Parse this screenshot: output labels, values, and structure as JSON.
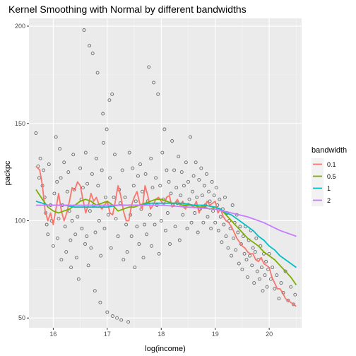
{
  "chart_data": {
    "type": "scatter",
    "title": "Kernel Smoothing with Normal by different bandwidths",
    "xlabel": "log(income)",
    "ylabel": "packpc",
    "xlim": [
      15.55,
      20.6
    ],
    "ylim": [
      45,
      204
    ],
    "x_ticks": [
      16,
      17,
      18,
      19,
      20
    ],
    "y_ticks": [
      50,
      100,
      150,
      200
    ],
    "grid": true,
    "panel_background": "#ebebeb",
    "point_color": "#000000",
    "legend": {
      "title": "bandwidth",
      "placement": "right"
    },
    "points": [
      [
        15.68,
        145
      ],
      [
        15.72,
        128
      ],
      [
        15.74,
        122
      ],
      [
        15.76,
        132
      ],
      [
        15.8,
        118
      ],
      [
        15.82,
        126
      ],
      [
        15.84,
        112
      ],
      [
        15.86,
        104
      ],
      [
        15.88,
        98
      ],
      [
        15.9,
        93
      ],
      [
        15.92,
        129
      ],
      [
        15.95,
        108
      ],
      [
        15.97,
        100
      ],
      [
        16.0,
        87
      ],
      [
        16.02,
        114
      ],
      [
        16.05,
        143
      ],
      [
        16.07,
        120
      ],
      [
        16.08,
        91
      ],
      [
        16.1,
        101
      ],
      [
        16.12,
        137
      ],
      [
        16.14,
        122
      ],
      [
        16.15,
        80
      ],
      [
        16.17,
        108
      ],
      [
        16.2,
        130
      ],
      [
        16.22,
        97
      ],
      [
        16.24,
        84
      ],
      [
        16.26,
        115
      ],
      [
        16.28,
        125
      ],
      [
        16.3,
        105
      ],
      [
        16.32,
        90
      ],
      [
        16.33,
        76
      ],
      [
        16.35,
        100
      ],
      [
        16.37,
        134
      ],
      [
        16.39,
        116
      ],
      [
        16.41,
        93
      ],
      [
        16.43,
        81
      ],
      [
        16.45,
        102
      ],
      [
        16.47,
        70
      ],
      [
        16.5,
        127
      ],
      [
        16.52,
        111
      ],
      [
        16.53,
        96
      ],
      [
        16.55,
        117
      ],
      [
        16.57,
        198
      ],
      [
        16.59,
        88
      ],
      [
        16.6,
        135
      ],
      [
        16.62,
        92
      ],
      [
        16.63,
        119
      ],
      [
        16.65,
        77
      ],
      [
        16.67,
        190
      ],
      [
        16.68,
        105
      ],
      [
        16.7,
        86
      ],
      [
        16.72,
        124
      ],
      [
        16.73,
        186
      ],
      [
        16.75,
        108
      ],
      [
        16.77,
        64
      ],
      [
        16.78,
        94
      ],
      [
        16.8,
        132
      ],
      [
        16.82,
        176
      ],
      [
        16.83,
        118
      ],
      [
        16.85,
        100
      ],
      [
        16.87,
        58
      ],
      [
        16.88,
        82
      ],
      [
        16.9,
        126
      ],
      [
        16.92,
        155
      ],
      [
        16.93,
        140
      ],
      [
        16.95,
        96
      ],
      [
        16.97,
        112
      ],
      [
        16.99,
        147
      ],
      [
        17.0,
        53
      ],
      [
        17.02,
        103
      ],
      [
        17.04,
        162
      ],
      [
        17.05,
        122
      ],
      [
        17.07,
        86
      ],
      [
        17.09,
        165
      ],
      [
        17.1,
        51
      ],
      [
        17.12,
        112
      ],
      [
        17.14,
        134
      ],
      [
        17.16,
        101
      ],
      [
        17.18,
        50
      ],
      [
        17.2,
        92
      ],
      [
        17.22,
        116
      ],
      [
        17.24,
        109
      ],
      [
        17.26,
        49
      ],
      [
        17.28,
        126
      ],
      [
        17.3,
        80
      ],
      [
        17.33,
        112
      ],
      [
        17.35,
        98
      ],
      [
        17.37,
        84
      ],
      [
        17.39,
        48
      ],
      [
        17.41,
        135
      ],
      [
        17.43,
        103
      ],
      [
        17.45,
        92
      ],
      [
        17.47,
        127
      ],
      [
        17.49,
        118
      ],
      [
        17.51,
        76
      ],
      [
        17.53,
        110
      ],
      [
        17.55,
        97
      ],
      [
        17.57,
        123
      ],
      [
        17.59,
        88
      ],
      [
        17.61,
        129
      ],
      [
        17.63,
        106
      ],
      [
        17.65,
        115
      ],
      [
        17.67,
        81
      ],
      [
        17.69,
        98
      ],
      [
        17.71,
        124
      ],
      [
        17.73,
        93
      ],
      [
        17.75,
        110
      ],
      [
        17.77,
        179
      ],
      [
        17.79,
        103
      ],
      [
        17.81,
        132
      ],
      [
        17.82,
        87
      ],
      [
        17.84,
        117
      ],
      [
        17.86,
        171
      ],
      [
        17.88,
        98
      ],
      [
        17.9,
        122
      ],
      [
        17.92,
        108
      ],
      [
        17.94,
        165
      ],
      [
        17.96,
        83
      ],
      [
        17.98,
        118
      ],
      [
        18.0,
        100
      ],
      [
        18.02,
        135
      ],
      [
        18.04,
        111
      ],
      [
        18.06,
        147
      ],
      [
        18.08,
        95
      ],
      [
        18.1,
        126
      ],
      [
        18.12,
        104
      ],
      [
        18.14,
        120
      ],
      [
        18.16,
        88
      ],
      [
        18.18,
        114
      ],
      [
        18.2,
        141
      ],
      [
        18.22,
        108
      ],
      [
        18.24,
        126
      ],
      [
        18.26,
        97
      ],
      [
        18.28,
        117
      ],
      [
        18.3,
        109
      ],
      [
        18.32,
        133
      ],
      [
        18.34,
        90
      ],
      [
        18.36,
        113
      ],
      [
        18.38,
        125
      ],
      [
        18.4,
        103
      ],
      [
        18.42,
        118
      ],
      [
        18.44,
        107
      ],
      [
        18.46,
        130
      ],
      [
        18.48,
        96
      ],
      [
        18.5,
        120
      ],
      [
        18.52,
        111
      ],
      [
        18.54,
        143
      ],
      [
        18.56,
        99
      ],
      [
        18.58,
        115
      ],
      [
        18.6,
        123
      ],
      [
        18.62,
        104
      ],
      [
        18.64,
        130
      ],
      [
        18.66,
        112
      ],
      [
        18.68,
        94
      ],
      [
        18.7,
        121
      ],
      [
        18.72,
        106
      ],
      [
        18.74,
        127
      ],
      [
        18.76,
        113
      ],
      [
        18.78,
        99
      ],
      [
        18.8,
        118
      ],
      [
        18.82,
        108
      ],
      [
        18.84,
        124
      ],
      [
        18.86,
        102
      ],
      [
        18.88,
        115
      ],
      [
        18.9,
        110
      ],
      [
        18.92,
        96
      ],
      [
        18.94,
        120
      ],
      [
        18.96,
        105
      ],
      [
        18.98,
        113
      ],
      [
        19.0,
        99
      ],
      [
        19.02,
        117
      ],
      [
        19.04,
        108
      ],
      [
        19.06,
        95
      ],
      [
        19.08,
        111
      ],
      [
        19.1,
        102
      ],
      [
        19.12,
        89
      ],
      [
        19.14,
        106
      ],
      [
        19.16,
        98
      ],
      [
        19.18,
        112
      ],
      [
        19.2,
        92
      ],
      [
        19.22,
        104
      ],
      [
        19.24,
        86
      ],
      [
        19.26,
        100
      ],
      [
        19.28,
        96
      ],
      [
        19.3,
        82
      ],
      [
        19.32,
        108
      ],
      [
        19.34,
        91
      ],
      [
        19.36,
        99
      ],
      [
        19.38,
        85
      ],
      [
        19.4,
        103
      ],
      [
        19.42,
        94
      ],
      [
        19.44,
        78
      ],
      [
        19.46,
        97
      ],
      [
        19.48,
        88
      ],
      [
        19.5,
        75
      ],
      [
        19.52,
        92
      ],
      [
        19.54,
        83
      ],
      [
        19.56,
        97
      ],
      [
        19.58,
        80
      ],
      [
        19.6,
        71
      ],
      [
        19.62,
        90
      ],
      [
        19.64,
        82
      ],
      [
        19.66,
        95
      ],
      [
        19.68,
        77
      ],
      [
        19.7,
        86
      ],
      [
        19.72,
        68
      ],
      [
        19.74,
        84
      ],
      [
        19.76,
        91
      ],
      [
        19.78,
        74
      ],
      [
        19.8,
        80
      ],
      [
        19.82,
        70
      ],
      [
        19.84,
        87
      ],
      [
        19.86,
        76
      ],
      [
        19.88,
        64
      ],
      [
        19.9,
        83
      ],
      [
        19.92,
        72
      ],
      [
        19.94,
        79
      ],
      [
        19.96,
        66
      ],
      [
        19.98,
        75
      ],
      [
        20.0,
        83
      ],
      [
        20.03,
        70
      ],
      [
        20.06,
        76
      ],
      [
        20.1,
        65
      ],
      [
        20.14,
        72
      ],
      [
        20.18,
        60
      ],
      [
        20.22,
        68
      ],
      [
        20.26,
        63
      ],
      [
        20.3,
        74
      ],
      [
        20.35,
        59
      ],
      [
        20.4,
        66
      ],
      [
        20.45,
        57
      ],
      [
        20.48,
        62
      ]
    ],
    "series": [
      {
        "name": "0.1",
        "color": "#f8766d",
        "x": [
          15.68,
          15.75,
          15.8,
          15.85,
          15.9,
          15.95,
          16.0,
          16.05,
          16.1,
          16.15,
          16.2,
          16.25,
          16.3,
          16.35,
          16.4,
          16.45,
          16.5,
          16.55,
          16.6,
          16.65,
          16.7,
          16.75,
          16.8,
          16.85,
          16.9,
          16.95,
          17.0,
          17.05,
          17.1,
          17.15,
          17.2,
          17.25,
          17.3,
          17.35,
          17.4,
          17.45,
          17.5,
          17.55,
          17.6,
          17.65,
          17.7,
          17.75,
          17.8,
          17.85,
          17.9,
          17.95,
          18.0,
          18.05,
          18.1,
          18.15,
          18.2,
          18.25,
          18.3,
          18.35,
          18.4,
          18.45,
          18.5,
          18.55,
          18.6,
          18.65,
          18.7,
          18.75,
          18.8,
          18.85,
          18.9,
          18.95,
          19.0,
          19.05,
          19.1,
          19.15,
          19.2,
          19.25,
          19.3,
          19.35,
          19.4,
          19.45,
          19.5,
          19.55,
          19.6,
          19.65,
          19.7,
          19.75,
          19.8,
          19.85,
          19.9,
          19.95,
          20.0,
          20.05,
          20.1,
          20.15,
          20.2,
          20.25,
          20.3,
          20.35,
          20.4,
          20.45,
          20.5
        ],
        "values": [
          128,
          126,
          118,
          105,
          100,
          104,
          98,
          106,
          114,
          105,
          100,
          104,
          110,
          117,
          116,
          120,
          118,
          111,
          104,
          108,
          114,
          110,
          112,
          108,
          106,
          108,
          110,
          104,
          103,
          110,
          118,
          113,
          105,
          100,
          100,
          108,
          112,
          115,
          109,
          106,
          118,
          113,
          106,
          108,
          111,
          112,
          110,
          108,
          112,
          113,
          107,
          109,
          111,
          108,
          110,
          106,
          109,
          108,
          107,
          110,
          104,
          108,
          107,
          110,
          108,
          109,
          110,
          104,
          106,
          102,
          100,
          99,
          97,
          94,
          91,
          89,
          87,
          86,
          84,
          83,
          83,
          80,
          79,
          81,
          78,
          77,
          76,
          71,
          68,
          65,
          65,
          63,
          60,
          59,
          58,
          57,
          56
        ]
      },
      {
        "name": "0.5",
        "color": "#7cae00",
        "x": [
          15.68,
          15.8,
          15.9,
          16.0,
          16.1,
          16.2,
          16.3,
          16.4,
          16.5,
          16.6,
          16.7,
          16.8,
          16.9,
          17.0,
          17.1,
          17.2,
          17.3,
          17.4,
          17.5,
          17.6,
          17.7,
          17.8,
          17.9,
          18.0,
          18.1,
          18.2,
          18.3,
          18.4,
          18.5,
          18.6,
          18.7,
          18.8,
          18.9,
          19.0,
          19.1,
          19.2,
          19.3,
          19.4,
          19.5,
          19.6,
          19.7,
          19.8,
          19.9,
          20.0,
          20.1,
          20.2,
          20.3,
          20.4,
          20.5
        ],
        "values": [
          116,
          111,
          107,
          105,
          104,
          105,
          106,
          108,
          110,
          111,
          110,
          108,
          109,
          110,
          108,
          105,
          106,
          107,
          107,
          108,
          109,
          110,
          111,
          111,
          110,
          109,
          109,
          108,
          108,
          108,
          107,
          107,
          106,
          107,
          106,
          103,
          100,
          97,
          94,
          91,
          89,
          87,
          84,
          82,
          80,
          77,
          74,
          71,
          67
        ]
      },
      {
        "name": "1",
        "color": "#00bfc4",
        "x": [
          15.68,
          15.8,
          15.9,
          16.0,
          16.2,
          16.4,
          16.6,
          16.8,
          17.0,
          17.2,
          17.4,
          17.6,
          17.8,
          18.0,
          18.2,
          18.4,
          18.6,
          18.8,
          19.0,
          19.1,
          19.2,
          19.3,
          19.4,
          19.5,
          19.6,
          19.7,
          19.8,
          19.9,
          20.0,
          20.1,
          20.2,
          20.3,
          20.4,
          20.5
        ],
        "values": [
          110,
          109,
          108,
          108,
          108,
          107,
          107,
          107,
          107,
          108,
          108,
          108,
          109,
          109,
          109,
          109,
          108,
          108,
          107,
          106,
          104,
          103,
          101,
          99,
          97,
          95,
          92,
          90,
          87,
          85,
          82,
          80,
          78,
          76
        ]
      },
      {
        "name": "2",
        "color": "#c77cff",
        "x": [
          15.68,
          16.0,
          16.5,
          17.0,
          17.5,
          18.0,
          18.5,
          19.0,
          19.3,
          19.6,
          19.9,
          20.2,
          20.5
        ],
        "values": [
          108,
          108,
          108,
          108,
          108,
          108,
          107,
          106,
          104,
          102,
          99,
          95,
          92
        ]
      }
    ]
  }
}
